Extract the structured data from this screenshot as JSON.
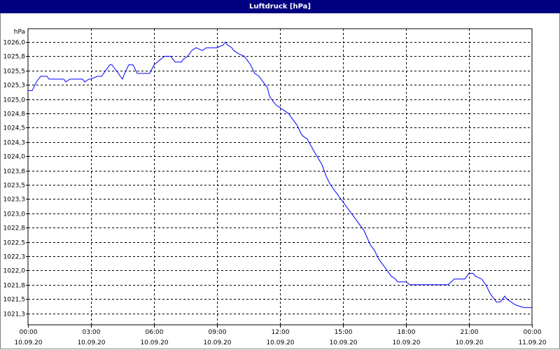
{
  "window": {
    "title": "Luftdruck [hPa]"
  },
  "colors": {
    "titlebar": "#000080",
    "series": "#0000ff",
    "grid": "#000000"
  },
  "chart_data": {
    "type": "line",
    "title": "Luftdruck [hPa]",
    "ylabel": "hPa",
    "xlabel": "",
    "grid": true,
    "ylim": [
      1021.2,
      1026.1
    ],
    "yticks": [
      "1026,0",
      "1025,8",
      "1025,5",
      "1025,3",
      "1025,0",
      "1024,8",
      "1024,5",
      "1024,3",
      "1024,0",
      "1023,8",
      "1023,5",
      "1023,3",
      "1023,0",
      "1022,8",
      "1022,5",
      "1022,3",
      "1022,0",
      "1021,8",
      "1021,5",
      "1021,3"
    ],
    "ytick_values": [
      1026.0,
      1025.75,
      1025.5,
      1025.25,
      1025.0,
      1024.75,
      1024.5,
      1024.25,
      1024.0,
      1023.75,
      1023.5,
      1023.25,
      1023.0,
      1022.75,
      1022.5,
      1022.25,
      1022.0,
      1021.75,
      1021.5,
      1021.25
    ],
    "xticks": [
      {
        "time": "00:00",
        "date": "10.09.20"
      },
      {
        "time": "03:00",
        "date": "10.09.20"
      },
      {
        "time": "06:00",
        "date": "10.09.20"
      },
      {
        "time": "09:00",
        "date": "10.09.20"
      },
      {
        "time": "12:00",
        "date": "10.09.20"
      },
      {
        "time": "15:00",
        "date": "10.09.20"
      },
      {
        "time": "18:00",
        "date": "10.09.20"
      },
      {
        "time": "21:00",
        "date": "10.09.20"
      },
      {
        "time": "00:00",
        "date": "11.09.20"
      }
    ],
    "xlim": [
      0,
      24
    ],
    "series": [
      {
        "x": [
          0,
          0.2,
          0.4,
          0.6,
          0.9,
          1.0,
          1.5,
          1.7,
          1.8,
          2.0,
          2.3,
          2.6,
          2.7,
          2.9,
          3.0,
          3.3,
          3.5,
          3.7,
          3.9,
          4.0,
          4.3,
          4.5,
          4.6,
          4.8,
          5.0,
          5.2,
          5.4,
          5.6,
          5.8,
          6.0,
          6.5,
          6.6,
          6.8,
          7.0,
          7.3,
          7.4,
          7.6,
          7.8,
          8.0,
          8.3,
          8.5,
          8.8,
          9.0,
          9.3,
          9.4,
          9.5,
          9.7,
          9.8,
          10.0,
          10.3,
          10.6,
          10.8,
          11.0,
          11.4,
          11.5,
          11.8,
          12.0,
          12.2,
          12.4,
          12.6,
          12.8,
          13.0,
          13.1,
          13.3,
          13.6,
          14.0,
          14.2,
          14.4,
          14.6,
          15.0,
          15.5,
          16.0,
          16.3,
          16.5,
          16.7,
          16.9,
          17.1,
          17.3,
          17.5,
          17.6,
          17.8,
          18.0,
          18.2,
          18.4,
          18.6,
          19.0,
          19.5,
          20.0,
          20.3,
          20.6,
          20.8,
          21.0,
          21.2,
          21.3,
          21.6,
          21.8,
          22.0,
          22.2,
          22.3,
          22.5,
          22.7,
          22.8,
          23.0,
          23.2,
          23.6,
          24.0
        ],
        "y": [
          1025.15,
          1025.15,
          1025.3,
          1025.4,
          1025.4,
          1025.35,
          1025.35,
          1025.35,
          1025.3,
          1025.35,
          1025.35,
          1025.35,
          1025.3,
          1025.35,
          1025.35,
          1025.4,
          1025.4,
          1025.5,
          1025.6,
          1025.6,
          1025.45,
          1025.35,
          1025.45,
          1025.6,
          1025.6,
          1025.45,
          1025.45,
          1025.45,
          1025.45,
          1025.6,
          1025.75,
          1025.75,
          1025.75,
          1025.65,
          1025.65,
          1025.7,
          1025.75,
          1025.85,
          1025.9,
          1025.85,
          1025.9,
          1025.9,
          1025.9,
          1025.95,
          1026.0,
          1025.95,
          1025.9,
          1025.85,
          1025.8,
          1025.75,
          1025.6,
          1025.45,
          1025.4,
          1025.2,
          1025.05,
          1024.9,
          1024.85,
          1024.8,
          1024.75,
          1024.65,
          1024.55,
          1024.4,
          1024.35,
          1024.3,
          1024.1,
          1023.85,
          1023.65,
          1023.5,
          1023.4,
          1023.2,
          1022.95,
          1022.7,
          1022.45,
          1022.35,
          1022.2,
          1022.1,
          1022.0,
          1021.9,
          1021.85,
          1021.8,
          1021.8,
          1021.8,
          1021.75,
          1021.75,
          1021.75,
          1021.75,
          1021.75,
          1021.75,
          1021.85,
          1021.85,
          1021.85,
          1021.95,
          1021.95,
          1021.9,
          1021.85,
          1021.75,
          1021.6,
          1021.5,
          1021.45,
          1021.45,
          1021.55,
          1021.5,
          1021.45,
          1021.4,
          1021.35,
          1021.35
        ]
      }
    ]
  }
}
